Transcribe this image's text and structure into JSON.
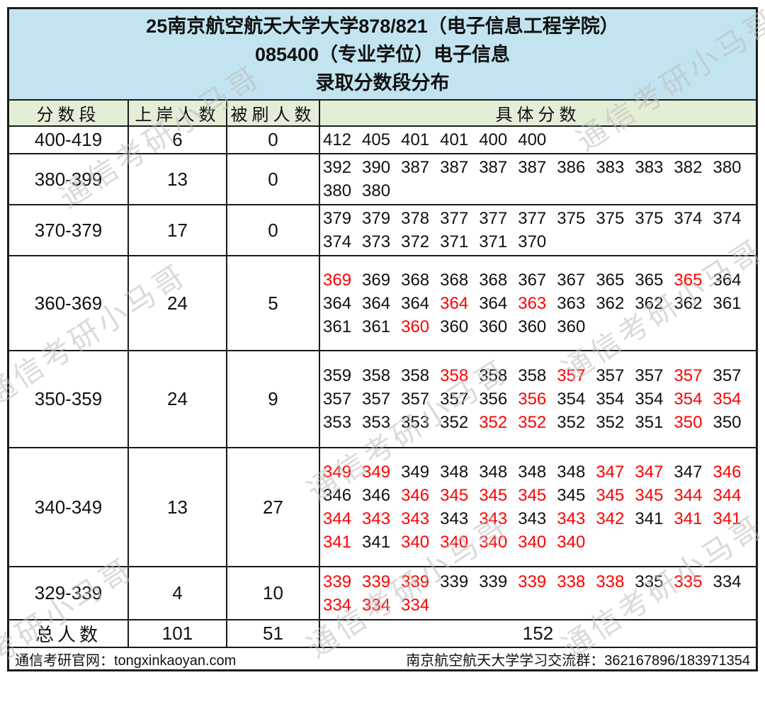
{
  "chart_data": {
    "type": "table",
    "title": "25南京航空航天大学大学878/821（电子信息工程学院）",
    "subtitle": "085400（专业学位）电子信息",
    "caption": "录取分数段分布",
    "columns": [
      "分数段",
      "上岸人数",
      "被刷人数",
      "具体分数"
    ],
    "red_note": "red score = 被刷 (rejected), black score = 上岸 (admitted)",
    "rows": [
      {
        "range": "400-419",
        "admitted": "6",
        "rejected": "0",
        "scores": [
          [
            "412",
            0
          ],
          [
            "405",
            0
          ],
          [
            "401",
            0
          ],
          [
            "401",
            0
          ],
          [
            "400",
            0
          ],
          [
            "400",
            0
          ]
        ]
      },
      {
        "range": "380-399",
        "admitted": "13",
        "rejected": "0",
        "scores": [
          [
            "392",
            0
          ],
          [
            "390",
            0
          ],
          [
            "387",
            0
          ],
          [
            "387",
            0
          ],
          [
            "387",
            0
          ],
          [
            "387",
            0
          ],
          [
            "386",
            0
          ],
          [
            "383",
            0
          ],
          [
            "383",
            0
          ],
          [
            "382",
            0
          ],
          [
            "380",
            0
          ],
          [
            "380",
            0
          ],
          [
            "380",
            0
          ]
        ]
      },
      {
        "range": "370-379",
        "admitted": "17",
        "rejected": "0",
        "scores": [
          [
            "379",
            0
          ],
          [
            "379",
            0
          ],
          [
            "378",
            0
          ],
          [
            "377",
            0
          ],
          [
            "377",
            0
          ],
          [
            "377",
            0
          ],
          [
            "375",
            0
          ],
          [
            "375",
            0
          ],
          [
            "375",
            0
          ],
          [
            "374",
            0
          ],
          [
            "374",
            0
          ],
          [
            "374",
            0
          ],
          [
            "373",
            0
          ],
          [
            "372",
            0
          ],
          [
            "371",
            0
          ],
          [
            "371",
            0
          ],
          [
            "370",
            0
          ]
        ]
      },
      {
        "range": "360-369",
        "admitted": "24",
        "rejected": "5",
        "scores": [
          [
            "369",
            1
          ],
          [
            "369",
            0
          ],
          [
            "368",
            0
          ],
          [
            "368",
            0
          ],
          [
            "368",
            0
          ],
          [
            "367",
            0
          ],
          [
            "367",
            0
          ],
          [
            "365",
            0
          ],
          [
            "365",
            0
          ],
          [
            "365",
            1
          ],
          [
            "364",
            0
          ],
          [
            "364",
            0
          ],
          [
            "364",
            0
          ],
          [
            "364",
            0
          ],
          [
            "364",
            1
          ],
          [
            "364",
            0
          ],
          [
            "363",
            1
          ],
          [
            "363",
            0
          ],
          [
            "362",
            0
          ],
          [
            "362",
            0
          ],
          [
            "362",
            0
          ],
          [
            "361",
            0
          ],
          [
            "361",
            0
          ],
          [
            "361",
            0
          ],
          [
            "360",
            1
          ],
          [
            "360",
            0
          ],
          [
            "360",
            0
          ],
          [
            "360",
            0
          ],
          [
            "360",
            0
          ]
        ]
      },
      {
        "range": "350-359",
        "admitted": "24",
        "rejected": "9",
        "scores": [
          [
            "359",
            0
          ],
          [
            "358",
            0
          ],
          [
            "358",
            0
          ],
          [
            "358",
            1
          ],
          [
            "358",
            0
          ],
          [
            "358",
            0
          ],
          [
            "357",
            1
          ],
          [
            "357",
            0
          ],
          [
            "357",
            0
          ],
          [
            "357",
            1
          ],
          [
            "357",
            0
          ],
          [
            "357",
            0
          ],
          [
            "357",
            0
          ],
          [
            "357",
            0
          ],
          [
            "357",
            0
          ],
          [
            "356",
            0
          ],
          [
            "356",
            1
          ],
          [
            "354",
            0
          ],
          [
            "354",
            0
          ],
          [
            "354",
            0
          ],
          [
            "354",
            1
          ],
          [
            "354",
            1
          ],
          [
            "353",
            0
          ],
          [
            "353",
            0
          ],
          [
            "353",
            0
          ],
          [
            "352",
            0
          ],
          [
            "352",
            1
          ],
          [
            "352",
            1
          ],
          [
            "352",
            0
          ],
          [
            "352",
            0
          ],
          [
            "351",
            0
          ],
          [
            "350",
            1
          ],
          [
            "350",
            0
          ]
        ]
      },
      {
        "range": "340-349",
        "admitted": "13",
        "rejected": "27",
        "scores": [
          [
            "349",
            1
          ],
          [
            "349",
            1
          ],
          [
            "349",
            0
          ],
          [
            "348",
            0
          ],
          [
            "348",
            0
          ],
          [
            "348",
            0
          ],
          [
            "348",
            0
          ],
          [
            "347",
            1
          ],
          [
            "347",
            1
          ],
          [
            "347",
            0
          ],
          [
            "346",
            1
          ],
          [
            "346",
            0
          ],
          [
            "346",
            0
          ],
          [
            "346",
            1
          ],
          [
            "345",
            1
          ],
          [
            "345",
            1
          ],
          [
            "345",
            1
          ],
          [
            "345",
            0
          ],
          [
            "345",
            1
          ],
          [
            "345",
            1
          ],
          [
            "344",
            1
          ],
          [
            "344",
            1
          ],
          [
            "344",
            1
          ],
          [
            "343",
            1
          ],
          [
            "343",
            1
          ],
          [
            "343",
            0
          ],
          [
            "343",
            1
          ],
          [
            "343",
            0
          ],
          [
            "343",
            1
          ],
          [
            "342",
            1
          ],
          [
            "341",
            0
          ],
          [
            "341",
            1
          ],
          [
            "341",
            1
          ],
          [
            "341",
            1
          ],
          [
            "341",
            0
          ],
          [
            "340",
            1
          ],
          [
            "340",
            1
          ],
          [
            "340",
            1
          ],
          [
            "340",
            1
          ],
          [
            "340",
            1
          ]
        ]
      },
      {
        "range": "329-339",
        "admitted": "4",
        "rejected": "10",
        "scores": [
          [
            "339",
            1
          ],
          [
            "339",
            1
          ],
          [
            "339",
            1
          ],
          [
            "339",
            0
          ],
          [
            "339",
            0
          ],
          [
            "339",
            1
          ],
          [
            "338",
            1
          ],
          [
            "338",
            1
          ],
          [
            "335",
            0
          ],
          [
            "335",
            1
          ],
          [
            "334",
            0
          ],
          [
            "334",
            1
          ],
          [
            "334",
            1
          ],
          [
            "334",
            1
          ]
        ]
      }
    ],
    "total": {
      "label": "总人数",
      "admitted": "101",
      "rejected": "51",
      "count": "152"
    }
  },
  "footer": {
    "left": "通信考研官网：tongxinkaoyan.com",
    "right": "南京航空航天大学学习交流群：362167896/183971354"
  },
  "watermark": {
    "text": "通信考研小马哥"
  },
  "colors": {
    "title_bg": "#c2e4f0",
    "header_bg": "#e3eed7",
    "red": "#ff0000"
  }
}
